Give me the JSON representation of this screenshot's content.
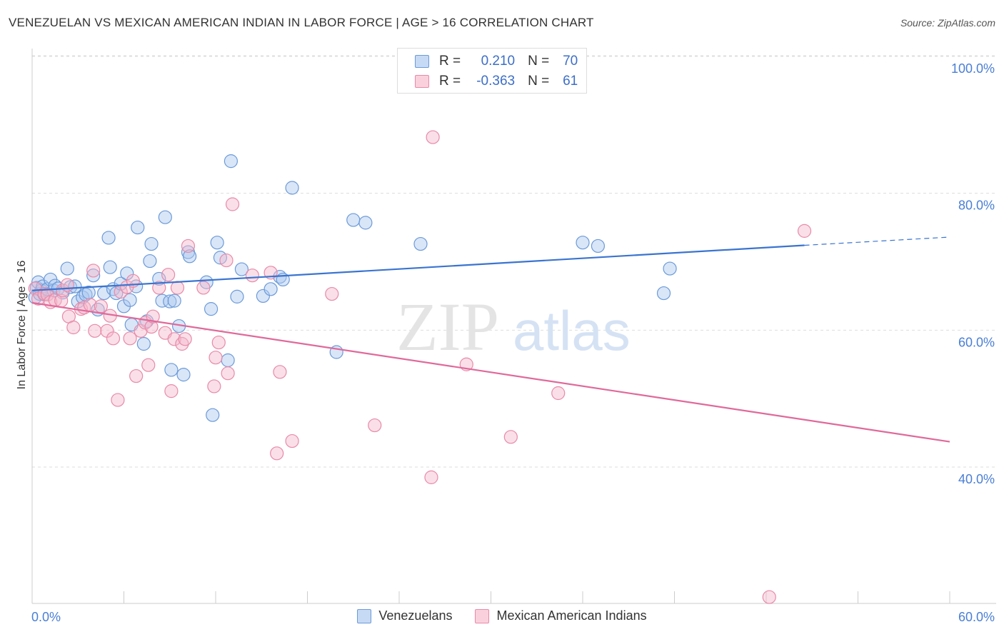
{
  "title": "VENEZUELAN VS MEXICAN AMERICAN INDIAN IN LABOR FORCE | AGE > 16 CORRELATION CHART",
  "source": "Source: ZipAtlas.com",
  "watermark": {
    "zip": "ZIP",
    "atlas": "atlas"
  },
  "colors": {
    "blue_fill": "#aac8ef",
    "blue_stroke": "#6b9ad8",
    "blue_line": "#3a74d0",
    "pink_fill": "#f5b8cb",
    "pink_stroke": "#e88aa8",
    "pink_line": "#e0699a",
    "axis_text": "#4a7fd4",
    "grid": "#dddddd"
  },
  "legend": {
    "rows": [
      {
        "r_label": "R =",
        "r_value": "0.210",
        "n_label": "N =",
        "n_value": "70",
        "series": "blue"
      },
      {
        "r_label": "R =",
        "r_value": "-0.363",
        "n_label": "N =",
        "n_value": "61",
        "series": "pink"
      }
    ]
  },
  "bottom_legend": [
    "Venezuelans",
    "Mexican American Indians"
  ],
  "chart_data": {
    "type": "scatter",
    "title": "VENEZUELAN VS MEXICAN AMERICAN INDIAN IN LABOR FORCE | AGE > 16 CORRELATION CHART",
    "xlabel": "",
    "ylabel": "In Labor Force | Age > 16",
    "xlim": [
      0,
      60
    ],
    "ylim": [
      20,
      100
    ],
    "x_tick_labels": [
      "0.0%",
      "60.0%"
    ],
    "y_ticks": [
      40,
      60,
      80,
      100
    ],
    "y_tick_labels": [
      "40.0%",
      "60.0%",
      "80.0%",
      "100.0%"
    ],
    "grid": true,
    "legend_position": "top-center",
    "series": [
      {
        "name": "Venezuelans",
        "color": "blue",
        "trend": {
          "x": [
            0,
            50.5
          ],
          "y": [
            65.8,
            72.4
          ],
          "dashed_to": [
            60,
            73.6
          ]
        },
        "points": [
          [
            0.2,
            64.8
          ],
          [
            0.3,
            66.2
          ],
          [
            0.4,
            67.0
          ],
          [
            0.5,
            65.3
          ],
          [
            0.6,
            65.8
          ],
          [
            0.7,
            66.4
          ],
          [
            0.8,
            65.2
          ],
          [
            1.0,
            66.0
          ],
          [
            1.2,
            67.4
          ],
          [
            1.4,
            65.8
          ],
          [
            1.5,
            66.5
          ],
          [
            1.7,
            66.1
          ],
          [
            2.0,
            65.5
          ],
          [
            2.3,
            69.0
          ],
          [
            2.5,
            66.3
          ],
          [
            2.8,
            66.4
          ],
          [
            3.0,
            64.2
          ],
          [
            3.3,
            64.8
          ],
          [
            3.5,
            65.2
          ],
          [
            3.7,
            65.5
          ],
          [
            4.0,
            68.0
          ],
          [
            4.3,
            63.0
          ],
          [
            4.7,
            65.4
          ],
          [
            5.0,
            73.5
          ],
          [
            5.1,
            69.2
          ],
          [
            5.3,
            66.0
          ],
          [
            5.5,
            65.4
          ],
          [
            5.8,
            66.8
          ],
          [
            6.0,
            63.5
          ],
          [
            6.2,
            68.3
          ],
          [
            6.4,
            64.4
          ],
          [
            6.5,
            60.8
          ],
          [
            6.8,
            66.4
          ],
          [
            6.9,
            75.0
          ],
          [
            7.3,
            58.0
          ],
          [
            7.5,
            61.3
          ],
          [
            7.7,
            70.1
          ],
          [
            7.8,
            72.6
          ],
          [
            8.3,
            67.5
          ],
          [
            8.5,
            64.3
          ],
          [
            8.7,
            76.5
          ],
          [
            9.0,
            64.2
          ],
          [
            9.1,
            54.2
          ],
          [
            9.3,
            64.3
          ],
          [
            9.6,
            60.6
          ],
          [
            9.9,
            53.5
          ],
          [
            10.2,
            71.4
          ],
          [
            10.3,
            70.8
          ],
          [
            11.4,
            67.0
          ],
          [
            11.7,
            63.1
          ],
          [
            11.8,
            47.6
          ],
          [
            12.1,
            72.8
          ],
          [
            12.3,
            70.6
          ],
          [
            12.8,
            55.6
          ],
          [
            13.0,
            84.7
          ],
          [
            13.4,
            64.9
          ],
          [
            13.7,
            68.9
          ],
          [
            15.1,
            65.0
          ],
          [
            15.6,
            66.0
          ],
          [
            16.2,
            67.8
          ],
          [
            16.4,
            67.4
          ],
          [
            17.0,
            80.8
          ],
          [
            19.9,
            56.8
          ],
          [
            21.0,
            76.1
          ],
          [
            21.8,
            75.7
          ],
          [
            25.4,
            72.6
          ],
          [
            36.0,
            72.8
          ],
          [
            37.0,
            72.3
          ],
          [
            41.7,
            69.0
          ],
          [
            41.3,
            65.4
          ]
        ]
      },
      {
        "name": "Mexican American Indians",
        "color": "pink",
        "trend": {
          "x": [
            0,
            60
          ],
          "y": [
            64.0,
            43.7
          ]
        },
        "points": [
          [
            0.2,
            66.1
          ],
          [
            0.4,
            64.6
          ],
          [
            0.8,
            65.3
          ],
          [
            1.0,
            65.2
          ],
          [
            1.2,
            64.1
          ],
          [
            1.5,
            64.4
          ],
          [
            1.9,
            64.3
          ],
          [
            2.0,
            65.8
          ],
          [
            2.3,
            66.6
          ],
          [
            2.4,
            62.0
          ],
          [
            2.7,
            60.4
          ],
          [
            3.2,
            63.1
          ],
          [
            3.4,
            63.3
          ],
          [
            3.8,
            63.7
          ],
          [
            4.0,
            68.7
          ],
          [
            4.1,
            59.9
          ],
          [
            4.5,
            63.5
          ],
          [
            4.9,
            59.9
          ],
          [
            5.1,
            62.1
          ],
          [
            5.3,
            58.8
          ],
          [
            5.6,
            49.8
          ],
          [
            5.8,
            65.6
          ],
          [
            6.2,
            66.3
          ],
          [
            6.4,
            58.8
          ],
          [
            6.6,
            67.2
          ],
          [
            6.8,
            53.3
          ],
          [
            7.1,
            59.9
          ],
          [
            7.4,
            61.1
          ],
          [
            7.6,
            54.9
          ],
          [
            7.8,
            60.5
          ],
          [
            7.9,
            62.0
          ],
          [
            8.3,
            66.2
          ],
          [
            8.7,
            59.6
          ],
          [
            8.9,
            68.1
          ],
          [
            9.1,
            51.1
          ],
          [
            9.3,
            58.7
          ],
          [
            9.5,
            66.2
          ],
          [
            9.8,
            58.0
          ],
          [
            10.0,
            58.7
          ],
          [
            10.2,
            72.3
          ],
          [
            11.2,
            66.2
          ],
          [
            11.9,
            51.8
          ],
          [
            12.0,
            56.0
          ],
          [
            12.2,
            58.2
          ],
          [
            12.7,
            70.2
          ],
          [
            12.8,
            53.7
          ],
          [
            13.1,
            78.4
          ],
          [
            14.4,
            68.0
          ],
          [
            15.6,
            68.4
          ],
          [
            16.0,
            42.0
          ],
          [
            16.2,
            53.9
          ],
          [
            17.0,
            43.8
          ],
          [
            19.6,
            65.3
          ],
          [
            22.4,
            46.1
          ],
          [
            26.1,
            38.5
          ],
          [
            26.2,
            88.2
          ],
          [
            28.4,
            55.0
          ],
          [
            31.3,
            44.4
          ],
          [
            34.4,
            50.8
          ],
          [
            50.5,
            74.5
          ],
          [
            48.2,
            21.0
          ]
        ]
      }
    ]
  }
}
